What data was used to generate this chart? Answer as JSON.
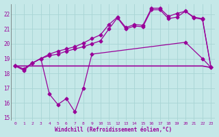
{
  "xlabel": "Windchill (Refroidissement éolien,°C)",
  "background_color": "#c5e8e8",
  "grid_color": "#a8d4d4",
  "line_color": "#990099",
  "x": [
    0,
    1,
    2,
    3,
    4,
    5,
    6,
    7,
    8,
    9,
    10,
    11,
    12,
    13,
    14,
    15,
    16,
    17,
    18,
    19,
    20,
    21,
    22,
    23
  ],
  "line_wavy": [
    18.5,
    18.2,
    18.7,
    19.0,
    16.6,
    15.9,
    16.3,
    15.4,
    17.0,
    19.3,
    null,
    null,
    null,
    null,
    null,
    null,
    null,
    null,
    null,
    null,
    20.1,
    null,
    19.0,
    18.4
  ],
  "line_flat": [
    18.5,
    18.5,
    18.5,
    18.5,
    18.5,
    18.5,
    18.5,
    18.5,
    18.5,
    18.5,
    18.5,
    18.5,
    18.5,
    18.5,
    18.5,
    18.5,
    18.5,
    18.5,
    18.5,
    18.5,
    18.5,
    18.5,
    18.5,
    18.4
  ],
  "line_rise1": [
    18.5,
    18.3,
    18.7,
    19.0,
    19.2,
    19.3,
    19.5,
    19.65,
    19.8,
    20.0,
    20.2,
    21.0,
    21.75,
    21.0,
    21.2,
    21.15,
    22.3,
    22.3,
    21.7,
    21.8,
    22.2,
    21.75,
    21.65,
    18.4
  ],
  "line_rise2": [
    18.5,
    18.3,
    18.7,
    19.0,
    19.3,
    19.5,
    19.65,
    19.8,
    20.05,
    20.35,
    20.6,
    21.3,
    21.8,
    21.1,
    21.3,
    21.25,
    22.4,
    22.4,
    21.85,
    22.05,
    22.2,
    21.8,
    21.7,
    18.4
  ],
  "ylim": [
    14.8,
    22.7
  ],
  "yticks": [
    15,
    16,
    17,
    18,
    19,
    20,
    21,
    22
  ],
  "xlim": [
    -0.5,
    23.5
  ]
}
